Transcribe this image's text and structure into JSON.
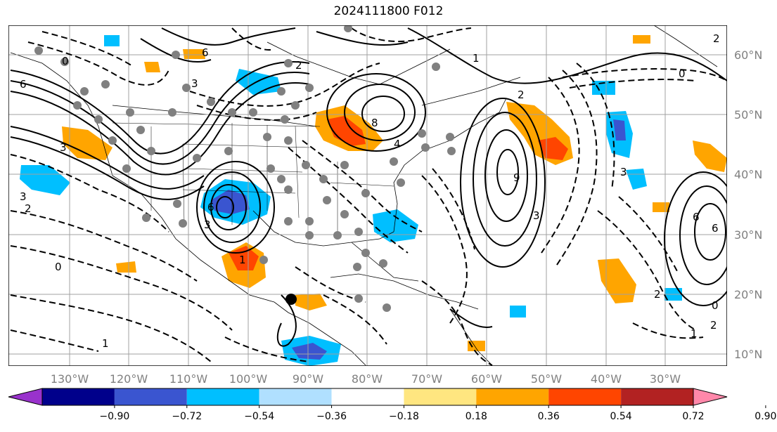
{
  "title": "2024111800 F012",
  "longitude_labels": [
    "130°W",
    "120°W",
    "110°W",
    "100°W",
    "90°W",
    "80°W",
    "70°W",
    "60°W",
    "50°W",
    "40°W",
    "30°W"
  ],
  "latitude_labels": [
    "60°N",
    "50°N",
    "40°N",
    "30°N",
    "20°N",
    "10°N"
  ],
  "colorbar": {
    "tick_labels": [
      "−0.90",
      "−0.72",
      "−0.54",
      "−0.36",
      "−0.18",
      "0.18",
      "0.36",
      "0.54",
      "0.72",
      "0.90"
    ],
    "colors": [
      "#9932cc",
      "#00008b",
      "#3a55d0",
      "#00bfff",
      "#b0e0ff",
      "#ffffff",
      "#ffe680",
      "#ffa500",
      "#ff4500",
      "#b22222",
      "#ff88aa"
    ]
  },
  "contour_labels": [
    "6",
    "2",
    "3",
    "6",
    "0",
    "3",
    "8",
    "4",
    "6",
    "3",
    "1",
    "3",
    "0",
    "2",
    "1",
    "3",
    "6",
    "2",
    "0",
    "3",
    "9",
    "6",
    "2",
    "1",
    "1",
    "2",
    "0",
    "2"
  ],
  "colors": {
    "positive_fill": "#ffa500",
    "strong_positive_fill": "#ff4500",
    "negative_fill": "#00bfff",
    "strong_negative_fill": "#3a55d0",
    "grid": "#a0a0a0",
    "station_dots": "#808080"
  }
}
